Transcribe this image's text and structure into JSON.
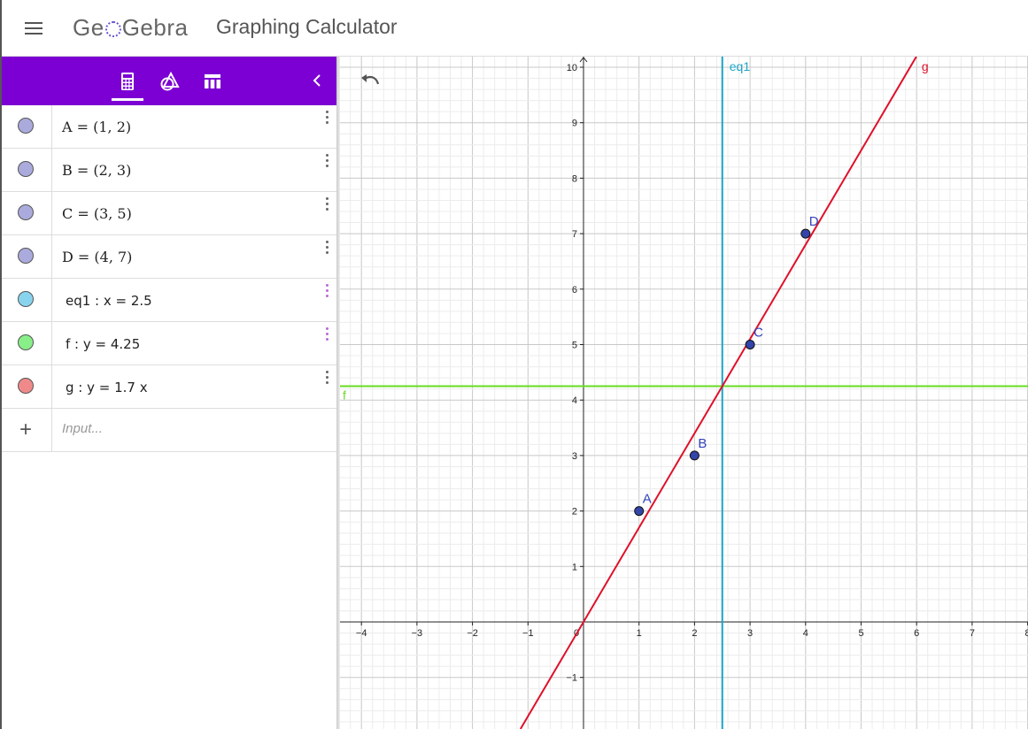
{
  "header": {
    "logo_left": "Ge",
    "logo_right": "Gebra",
    "app_title": "Graphing Calculator"
  },
  "toolbar": {
    "tabs": [
      "calculator-icon",
      "shapes-icon",
      "table-icon"
    ],
    "active_tab": 0
  },
  "algebra": {
    "items": [
      {
        "text": "A = (1, 2)",
        "color": "#aaaadd",
        "style": "serif"
      },
      {
        "text": "B = (2, 3)",
        "color": "#aaaadd",
        "style": "serif"
      },
      {
        "text": "C = (3, 5)",
        "color": "#aaaadd",
        "style": "serif"
      },
      {
        "text": "D = (4, 7)",
        "color": "#aaaadd",
        "style": "serif"
      },
      {
        "text": "eq1 : x = 2.5",
        "color": "#88d4ee",
        "style": "sans",
        "kebab": "purple"
      },
      {
        "text": "f : y = 4.25",
        "color": "#88ee88",
        "style": "sans",
        "kebab": "purple"
      },
      {
        "text": "g : y = 1.7 x",
        "color": "#f08a8a",
        "style": "sans"
      }
    ],
    "input_placeholder": "Input..."
  },
  "graph": {
    "x_ticks": [
      "−4",
      "−3",
      "−2",
      "−1",
      "0",
      "1",
      "2",
      "3",
      "4",
      "5",
      "6",
      "7",
      "8"
    ],
    "y_ticks": [
      "−1",
      "1",
      "2",
      "3",
      "4",
      "5",
      "6",
      "7",
      "8",
      "9",
      "10"
    ],
    "points": [
      {
        "label": "A",
        "x": 1,
        "y": 2
      },
      {
        "label": "B",
        "x": 2,
        "y": 3
      },
      {
        "label": "C",
        "x": 3,
        "y": 5
      },
      {
        "label": "D",
        "x": 4,
        "y": 7
      }
    ],
    "vertical_line": {
      "label": "eq1",
      "x": 2.5,
      "color": "#1ba3c6"
    },
    "horizontal_line": {
      "label": "f",
      "y": 4.25,
      "color": "#66dd22"
    },
    "line": {
      "label": "g",
      "slope": 1.7,
      "color": "#e0102a"
    },
    "point_color": "#3344aa",
    "label_color": "#3344bb"
  }
}
